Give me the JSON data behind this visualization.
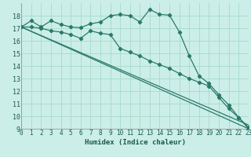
{
  "background_color": "#cceee8",
  "grid_color": "#aaddcc",
  "line_color": "#2a7a6a",
  "xlabel": "Humidex (Indice chaleur)",
  "ylim": [
    9,
    19
  ],
  "xlim": [
    0,
    23
  ],
  "yticks": [
    9,
    10,
    11,
    12,
    13,
    14,
    15,
    16,
    17,
    18
  ],
  "xticks": [
    0,
    1,
    2,
    3,
    4,
    5,
    6,
    7,
    8,
    9,
    10,
    11,
    12,
    13,
    14,
    15,
    16,
    17,
    18,
    19,
    20,
    21,
    22,
    23
  ],
  "series": [
    {
      "x": [
        0,
        1,
        2,
        3,
        4,
        5,
        6,
        7,
        8,
        9,
        10,
        11,
        12,
        13,
        14,
        15,
        16,
        17,
        18,
        19,
        20,
        21,
        22,
        23
      ],
      "y": [
        17.1,
        17.6,
        17.1,
        17.6,
        17.3,
        17.1,
        17.05,
        17.35,
        17.5,
        18.0,
        18.1,
        18.0,
        17.5,
        18.5,
        18.1,
        18.05,
        16.7,
        14.8,
        13.2,
        12.6,
        11.7,
        10.9,
        9.9,
        9.0
      ],
      "marker": true
    },
    {
      "x": [
        0,
        1,
        2,
        3,
        4,
        5,
        6,
        7,
        8,
        9,
        10,
        11,
        12,
        13,
        14,
        15,
        16,
        17,
        18,
        19,
        20,
        21,
        22,
        23
      ],
      "y": [
        17.1,
        17.1,
        17.0,
        16.8,
        16.7,
        16.5,
        16.2,
        16.8,
        16.6,
        16.5,
        15.4,
        15.1,
        14.8,
        14.4,
        14.1,
        13.8,
        13.4,
        13.0,
        12.7,
        12.4,
        11.5,
        10.6,
        9.9,
        9.1
      ],
      "marker": true
    },
    {
      "x": [
        0,
        23
      ],
      "y": [
        17.1,
        9.0
      ],
      "marker": false
    },
    {
      "x": [
        0,
        23
      ],
      "y": [
        17.1,
        9.3
      ],
      "marker": false
    }
  ]
}
